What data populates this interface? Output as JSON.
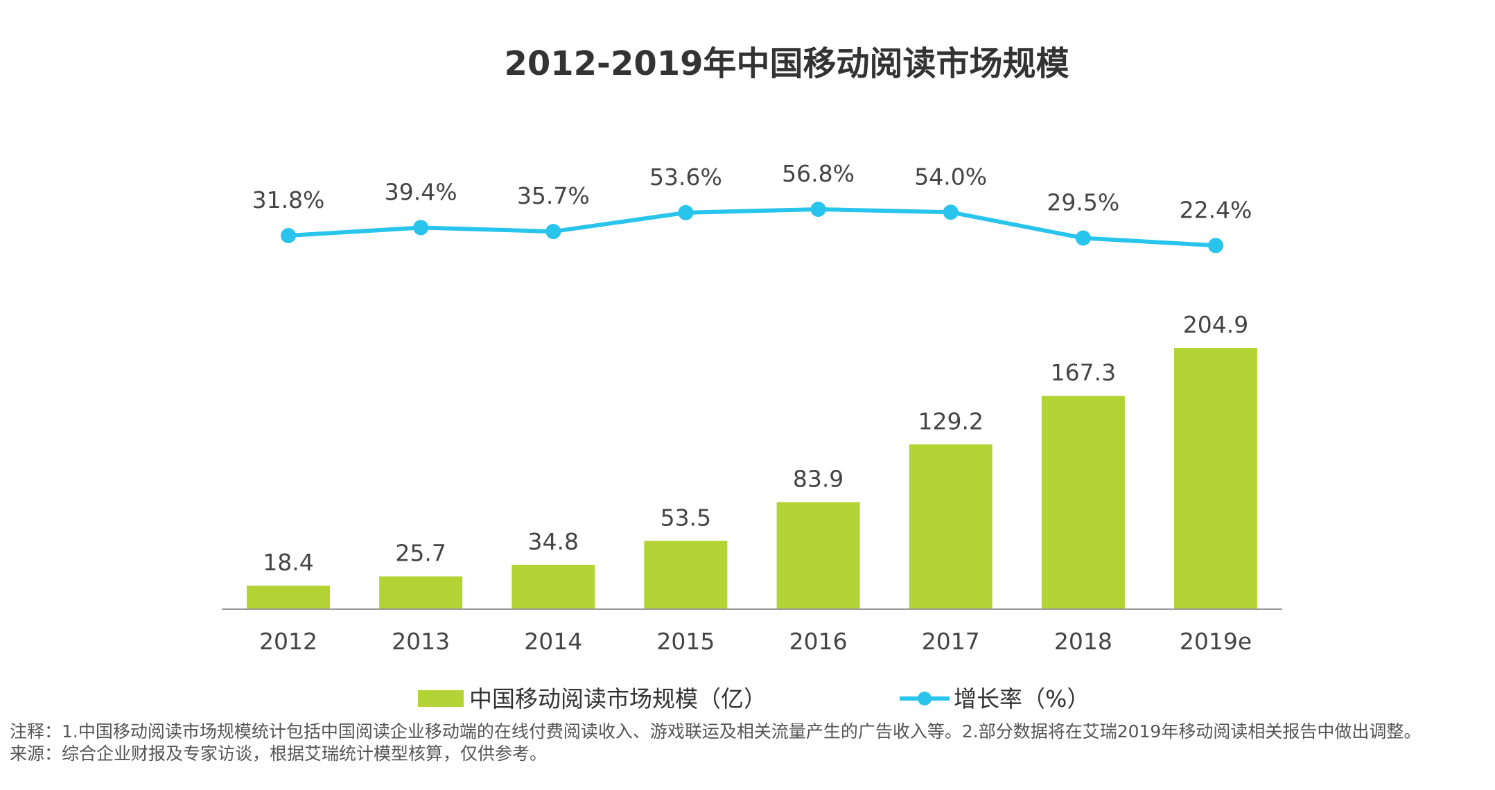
{
  "chart_data": {
    "type": "bar",
    "title": "2012-2019年中国移动阅读市场规模",
    "categories": [
      "2012",
      "2013",
      "2014",
      "2015",
      "2016",
      "2017",
      "2018",
      "2019e"
    ],
    "series": [
      {
        "name": "中国移动阅读市场规模（亿）",
        "type": "bar",
        "values": [
          18.4,
          25.7,
          34.8,
          53.5,
          83.9,
          129.2,
          167.3,
          204.9
        ],
        "labels": [
          "18.4",
          "25.7",
          "34.8",
          "53.5",
          "83.9",
          "129.2",
          "167.3",
          "204.9"
        ],
        "color": "#B4D334"
      },
      {
        "name": "增长率（%）",
        "type": "line",
        "values": [
          31.8,
          39.4,
          35.7,
          53.6,
          56.8,
          54.0,
          29.5,
          22.4
        ],
        "labels": [
          "31.8%",
          "39.4%",
          "35.7%",
          "53.6%",
          "56.8%",
          "54.0%",
          "29.5%",
          "22.4%"
        ],
        "color": "#29C4EC"
      }
    ],
    "legend": {
      "position": "bottom",
      "bar_label": "中国移动阅读市场规模（亿）",
      "line_label": "增长率（%）"
    },
    "grid": false
  },
  "notes": {
    "line1": "注释：1.中国移动阅读市场规模统计包括中国阅读企业移动端的在线付费阅读收入、游戏联运及相关流量产生的广告收入等。2.部分数据将在艾瑞2019年移动阅读相关报告中做出调整。",
    "line2": "来源：综合企业财报及专家访谈，根据艾瑞统计模型核算，仅供参考。"
  }
}
